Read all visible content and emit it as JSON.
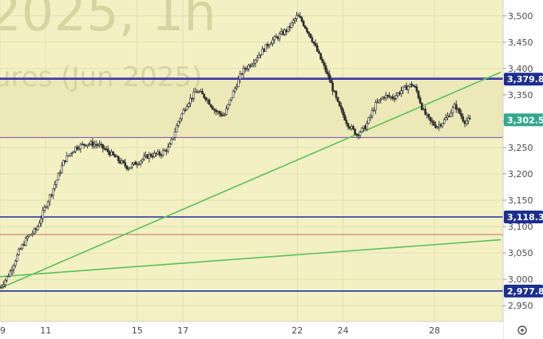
{
  "watermark": {
    "line1": "2025, 1h",
    "line2": "ures (Jun 2025)"
  },
  "colors": {
    "background": "#f3f0c4",
    "zone_fill": "#ece8b8",
    "grid": "#e3dfae",
    "candle": "#2b2b2b",
    "axis_bg": "#ffffff",
    "level_blue": "#1c2fa3",
    "level_purple": "#7a4bb0",
    "trend_green": "#5cbf5c",
    "level_red": "#c86b5a",
    "price_tag_current": "#34a88c",
    "price_tag_level": "#1c2f8f"
  },
  "axis_icon": "settings-icon",
  "chart_data": {
    "type": "candlestick",
    "title": "",
    "xlabel": "",
    "ylabel": "",
    "ylim": [
      2920,
      3530
    ],
    "xlim": [
      9,
      31
    ],
    "x_ticks": [
      {
        "x": 9,
        "label": "9"
      },
      {
        "x": 11,
        "label": "11"
      },
      {
        "x": 15,
        "label": "15"
      },
      {
        "x": 17,
        "label": "17"
      },
      {
        "x": 22,
        "label": "22"
      },
      {
        "x": 24,
        "label": "24"
      },
      {
        "x": 28,
        "label": "28"
      }
    ],
    "y_ticks": [
      2950,
      3000,
      3050,
      3100,
      3150,
      3200,
      3250,
      3300,
      3350,
      3400,
      3450,
      3500
    ],
    "y_tick_labels": [
      "2,950",
      "3,000",
      "3,050",
      "3,100",
      "3,150",
      "3,200",
      "3,250",
      "3,300",
      "3,350",
      "3,400",
      "3,450",
      "3,500"
    ],
    "grid": true,
    "price_path": [
      [
        9.0,
        2985
      ],
      [
        9.4,
        3010
      ],
      [
        9.8,
        3050
      ],
      [
        10.2,
        3080
      ],
      [
        10.6,
        3095
      ],
      [
        11.0,
        3140
      ],
      [
        11.4,
        3180
      ],
      [
        11.8,
        3225
      ],
      [
        12.3,
        3250
      ],
      [
        12.8,
        3258
      ],
      [
        13.3,
        3255
      ],
      [
        13.8,
        3240
      ],
      [
        14.2,
        3225
      ],
      [
        14.6,
        3212
      ],
      [
        15.0,
        3222
      ],
      [
        15.5,
        3235
      ],
      [
        16.0,
        3238
      ],
      [
        16.4,
        3250
      ],
      [
        16.8,
        3300
      ],
      [
        17.2,
        3335
      ],
      [
        17.6,
        3358
      ],
      [
        18.0,
        3345
      ],
      [
        18.4,
        3320
      ],
      [
        18.8,
        3310
      ],
      [
        19.2,
        3355
      ],
      [
        19.6,
        3395
      ],
      [
        20.0,
        3410
      ],
      [
        20.4,
        3430
      ],
      [
        20.8,
        3450
      ],
      [
        21.2,
        3462
      ],
      [
        21.6,
        3475
      ],
      [
        22.0,
        3500
      ],
      [
        22.2,
        3490
      ],
      [
        22.6,
        3460
      ],
      [
        23.0,
        3420
      ],
      [
        23.4,
        3380
      ],
      [
        23.8,
        3330
      ],
      [
        24.2,
        3295
      ],
      [
        24.6,
        3275
      ],
      [
        25.0,
        3290
      ],
      [
        25.4,
        3330
      ],
      [
        25.8,
        3348
      ],
      [
        26.2,
        3345
      ],
      [
        26.6,
        3360
      ],
      [
        27.0,
        3370
      ],
      [
        27.2,
        3360
      ],
      [
        27.5,
        3320
      ],
      [
        27.8,
        3300
      ],
      [
        28.1,
        3290
      ],
      [
        28.4,
        3300
      ],
      [
        28.6,
        3310
      ],
      [
        28.9,
        3330
      ],
      [
        29.3,
        3300
      ],
      [
        29.6,
        3302.5
      ]
    ],
    "horizontal_levels": [
      {
        "kind": "blue",
        "price": 3379.8,
        "tag": "3,379.8"
      },
      {
        "kind": "purple",
        "price": 3382
      },
      {
        "kind": "purple_thin",
        "price": 3269
      },
      {
        "kind": "blue",
        "price": 3118.3,
        "tag": "3,118.3"
      },
      {
        "kind": "red",
        "price": 3085
      },
      {
        "kind": "blue",
        "price": 2977.8,
        "tag": "2,977.8"
      }
    ],
    "trendlines": [
      {
        "from": [
          9.0,
          2983
        ],
        "to": [
          30.9,
          3393
        ]
      },
      {
        "from": [
          9.0,
          3005
        ],
        "to": [
          30.9,
          3075
        ]
      }
    ],
    "zone": {
      "low": 3269,
      "high": 3379.8
    },
    "current_price": {
      "price": 3302.5,
      "tag": "3,302.5"
    }
  }
}
